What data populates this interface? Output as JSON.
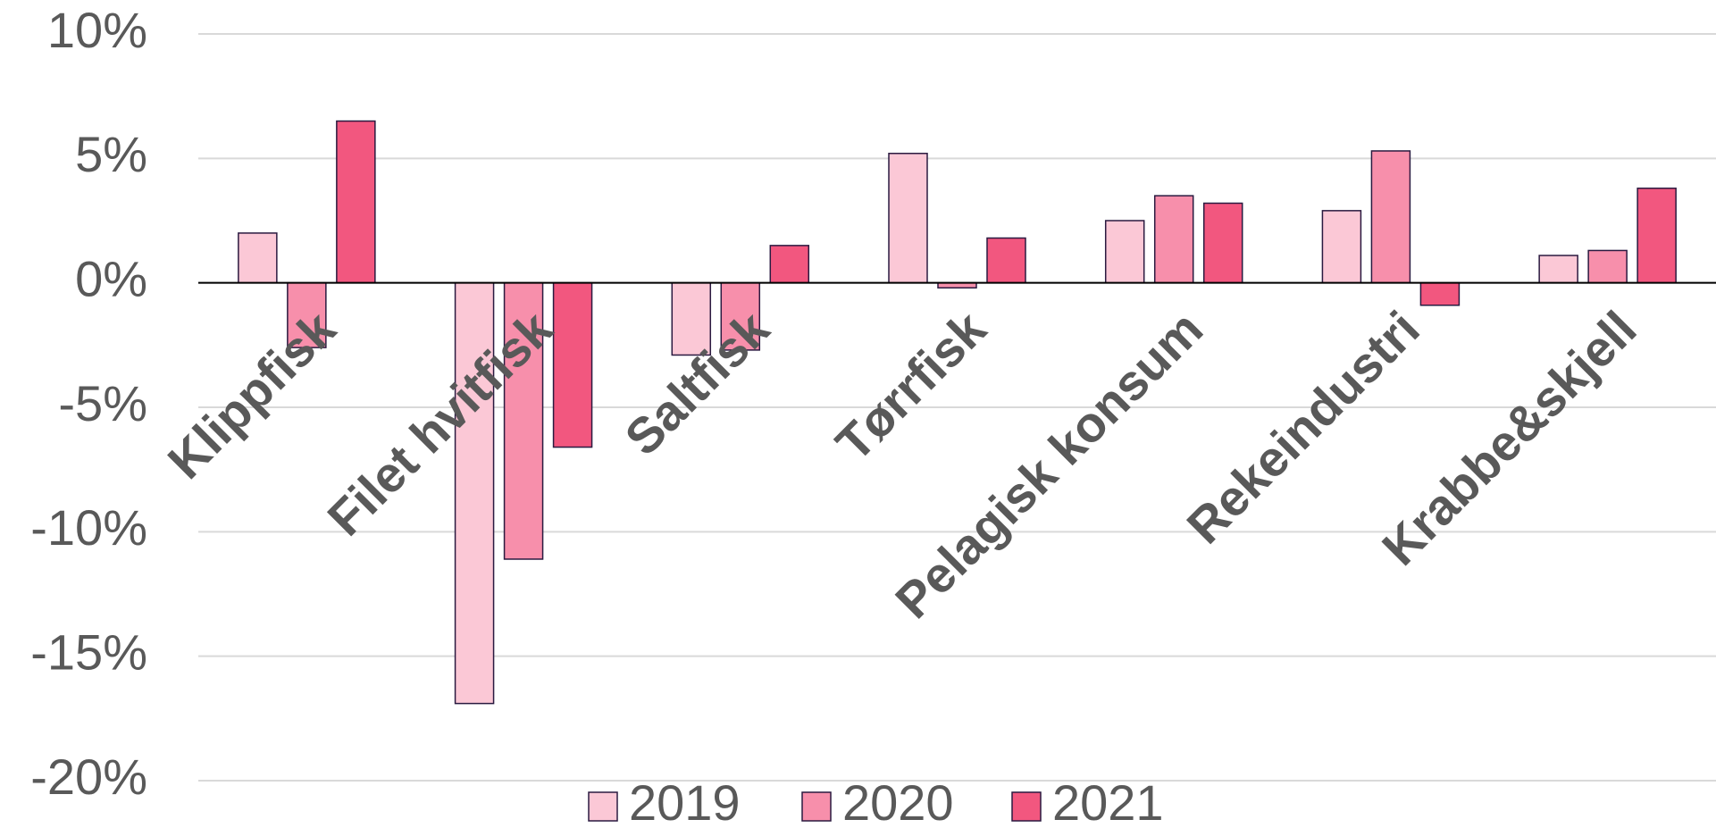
{
  "chart_data": {
    "type": "bar",
    "categories": [
      "Klippfisk",
      "Filet hvitfisk",
      "Saltfisk",
      "Tørrfisk",
      "Pelagisk konsum",
      "Rekeindustri",
      "Krabbe&skjell"
    ],
    "series": [
      {
        "name": "2019",
        "color": "#fbc8d6",
        "values": [
          2.0,
          -16.9,
          -2.9,
          5.2,
          2.5,
          2.9,
          1.1
        ]
      },
      {
        "name": "2020",
        "color": "#f78fab",
        "values": [
          -2.6,
          -11.1,
          -2.7,
          -0.2,
          3.5,
          5.3,
          1.3
        ]
      },
      {
        "name": "2021",
        "color": "#f2577f",
        "values": [
          6.5,
          -6.6,
          1.5,
          1.8,
          3.2,
          -0.9,
          3.8
        ]
      }
    ],
    "ylim": [
      -20,
      10
    ],
    "yticks": [
      {
        "value": -20,
        "label": "-20%"
      },
      {
        "value": -15,
        "label": "-15%"
      },
      {
        "value": -10,
        "label": "-10%"
      },
      {
        "value": -5,
        "label": "-5%"
      },
      {
        "value": 0,
        "label": "0%"
      },
      {
        "value": 5,
        "label": "5%"
      },
      {
        "value": 10,
        "label": "10%"
      }
    ],
    "grid": true,
    "legend": "bottom"
  }
}
